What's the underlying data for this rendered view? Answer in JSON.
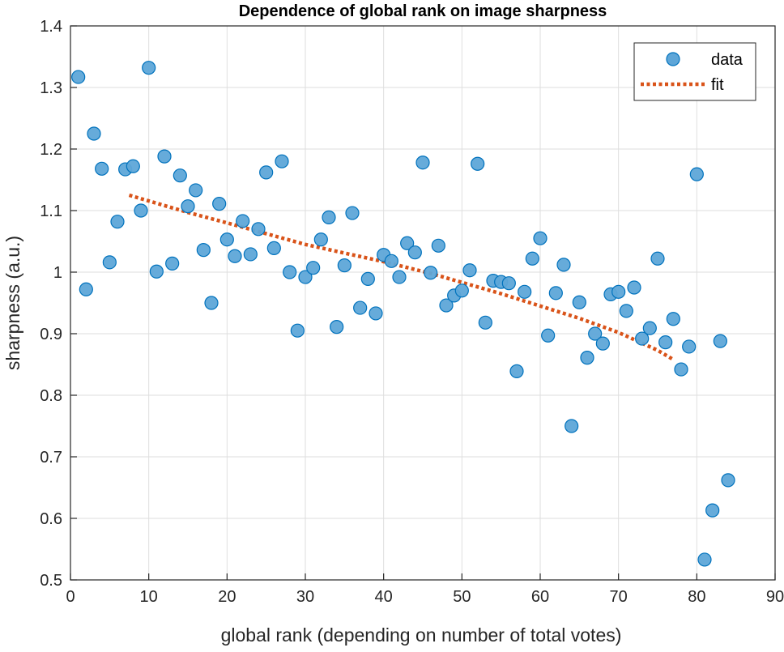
{
  "chart_data": {
    "type": "scatter",
    "title": "Dependence of global rank on image sharpness",
    "xlabel": "global rank (depending on number of total votes)",
    "ylabel": "sharpness (a.u.)",
    "xlim": [
      0,
      90
    ],
    "ylim": [
      0.5,
      1.4
    ],
    "xticks": [
      0,
      10,
      20,
      30,
      40,
      50,
      60,
      70,
      80,
      90
    ],
    "yticks": [
      0.5,
      0.6,
      0.7,
      0.8,
      0.9,
      1,
      1.1,
      1.2,
      1.3,
      1.4
    ],
    "xtick_labels": [
      "0",
      "10",
      "20",
      "30",
      "40",
      "50",
      "60",
      "70",
      "80",
      "90"
    ],
    "ytick_labels": [
      "0.5",
      "0.6",
      "0.7",
      "0.8",
      "0.9",
      "1",
      "1.1",
      "1.2",
      "1.3",
      "1.4"
    ],
    "grid": true,
    "legend": {
      "placement": "top-right",
      "entries": [
        "data",
        "fit"
      ]
    },
    "colors": {
      "data_fill": "#5ea6d8",
      "data_edge": "#0072bd",
      "fit": "#d95319",
      "grid": "#dedede"
    },
    "series": [
      {
        "name": "data",
        "style": "markers",
        "x": [
          1,
          2,
          3,
          4,
          5,
          6,
          7,
          8,
          9,
          10,
          11,
          12,
          13,
          14,
          15,
          16,
          17,
          18,
          19,
          20,
          21,
          22,
          23,
          24,
          25,
          26,
          27,
          28,
          29,
          30,
          31,
          32,
          33,
          34,
          35,
          36,
          37,
          38,
          39,
          40,
          41,
          42,
          43,
          44,
          45,
          46,
          47,
          48,
          49,
          50,
          51,
          52,
          53,
          54,
          55,
          56,
          57,
          58,
          59,
          60,
          61,
          62,
          63,
          64,
          65,
          66,
          67,
          68,
          69,
          70,
          71,
          72,
          73,
          74,
          75,
          76,
          77,
          78,
          79,
          80,
          81,
          82,
          83,
          84
        ],
        "y": [
          1.317,
          0.972,
          1.225,
          1.168,
          1.016,
          1.082,
          1.167,
          1.172,
          1.1,
          1.332,
          1.001,
          1.188,
          1.014,
          1.157,
          1.107,
          1.133,
          1.036,
          0.95,
          1.111,
          1.053,
          1.026,
          1.083,
          1.029,
          1.07,
          1.162,
          1.039,
          1.18,
          1.0,
          0.905,
          0.992,
          1.007,
          1.053,
          1.089,
          0.911,
          1.011,
          1.096,
          0.942,
          0.989,
          0.933,
          1.028,
          1.018,
          0.992,
          1.047,
          1.032,
          1.178,
          0.999,
          1.043,
          0.946,
          0.962,
          0.97,
          1.003,
          1.176,
          0.918,
          0.986,
          0.984,
          0.982,
          0.839,
          0.968,
          1.022,
          1.055,
          0.897,
          0.966,
          1.012,
          0.75,
          0.951,
          0.861,
          0.9,
          0.884,
          0.964,
          0.968,
          0.937,
          0.975,
          0.892,
          0.909,
          1.022,
          0.886,
          0.924,
          0.842,
          0.879,
          1.159,
          0.533,
          0.613,
          0.888,
          0.662
        ]
      },
      {
        "name": "fit",
        "style": "dotted-line",
        "x": [
          7.5,
          15,
          20,
          30,
          40,
          46,
          55,
          60,
          65,
          70,
          75,
          77
        ],
        "y": [
          1.125,
          1.097,
          1.08,
          1.045,
          1.017,
          0.998,
          0.965,
          0.945,
          0.925,
          0.902,
          0.873,
          0.858
        ]
      }
    ]
  }
}
